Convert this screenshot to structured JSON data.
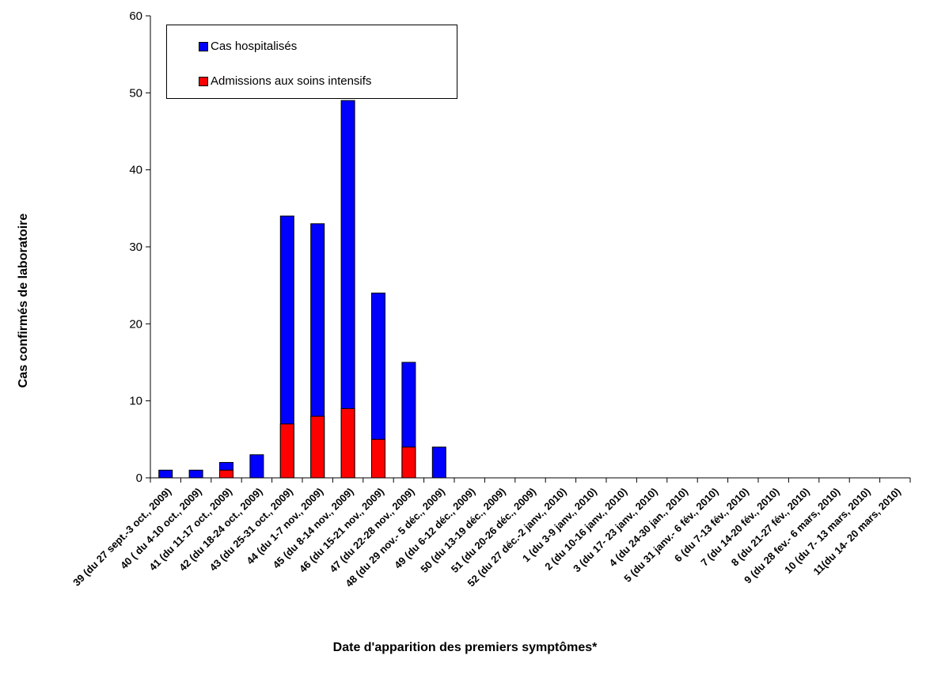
{
  "chart_data": {
    "type": "bar",
    "ylabel": "Cas confirmés de laboratoire",
    "xlabel": "Date d'apparition des premiers symptômes*",
    "ylim": [
      0,
      60
    ],
    "yticks": [
      "0",
      "10",
      "20",
      "30",
      "40",
      "50",
      "60"
    ],
    "grid": false,
    "legend_position": "top-left",
    "categories": [
      "39 (du 27 sept.-3 oct., 2009)",
      "40 ( du 4-10 oct., 2009)",
      "41 (du 11-17 oct., 2009)",
      "42 (du 18-24 oct., 2009)",
      "43 (du 25-31 oct., 2009)",
      "44 (du 1-7 nov., 2009)",
      "45 (du 8-14 nov., 2009)",
      "46 (du 15-21 nov., 2009)",
      "47 (du 22-28 nov., 2009)",
      "48 (du 29 nov.- 5 déc., 2009)",
      "49 (du 6-12 déc., 2009)",
      "50 (du 13-19 déc., 2009)",
      "51 (du 20-26 déc., 2009)",
      "52 (du 27 déc.-2 janv., 2010)",
      "1 (du 3-9 janv., 2010)",
      "2 (du 10-16 janv., 2010)",
      "3 (du 17- 23 janv., 2010)",
      "4 (du 24-30 jan., 2010)",
      "5 (du 31 janv.- 6 fév., 2010)",
      "6 (du 7-13 fév., 2010)",
      "7 (du 14-20 fév., 2010)",
      "8 (du 21-27 fév., 2010)",
      "9 (du 28 fev.- 6 mars, 2010)",
      "10 (du 7- 13 mars, 2010)",
      "11(du 14- 20 mars, 2010)"
    ],
    "series": [
      {
        "name": "Cas hospitalisés",
        "color": "#0000ff",
        "values": [
          1,
          1,
          2,
          3,
          34,
          33,
          49,
          24,
          15,
          4,
          0,
          0,
          0,
          0,
          0,
          0,
          0,
          0,
          0,
          0,
          0,
          0,
          0,
          0,
          0
        ]
      },
      {
        "name": "Admissions aux soins intensifs",
        "color": "#ff0000",
        "values": [
          0,
          0,
          1,
          0,
          7,
          8,
          9,
          5,
          4,
          0,
          0,
          0,
          0,
          0,
          0,
          0,
          0,
          0,
          0,
          0,
          0,
          0,
          0,
          0,
          0
        ]
      }
    ]
  }
}
